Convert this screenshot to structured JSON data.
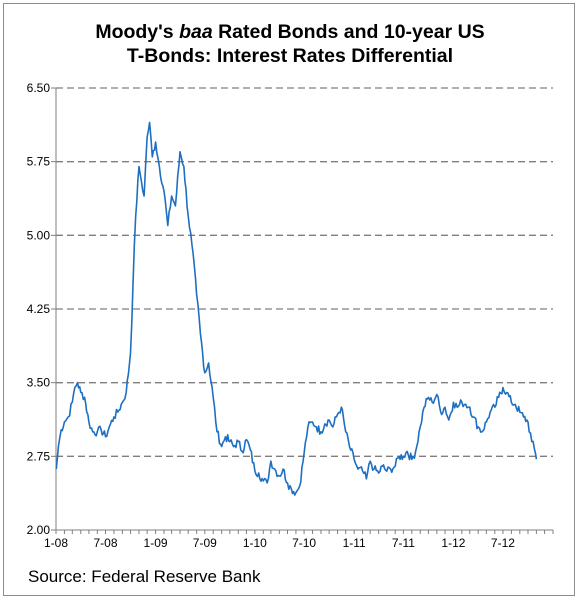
{
  "title": {
    "part1": "Moody's ",
    "part2_italic": "baa",
    "part3": " Rated Bonds and 10-year US",
    "line2": "T-Bonds: Interest Rates Differential"
  },
  "source": "Source: Federal Reserve Bank",
  "chart_data": {
    "type": "line",
    "title": "Moody's baa Rated Bonds and 10-year US T-Bonds: Interest Rates Differential",
    "xlabel": "",
    "ylabel": "",
    "ylim": [
      2.0,
      6.5
    ],
    "yticks": [
      "2.00",
      "2.75",
      "3.50",
      "4.25",
      "5.00",
      "5.75",
      "6.50"
    ],
    "xlim": [
      "2008-01",
      "2012-12"
    ],
    "xticks": [
      "1-08",
      "7-08",
      "1-09",
      "7-09",
      "1-10",
      "7-10",
      "1-11",
      "7-11",
      "1-12",
      "7-12"
    ],
    "grid": "horizontal dashed",
    "line_color": "#1f6fc0",
    "series": [
      {
        "x": [
          "2008-01-02",
          "2008-01-10",
          "2008-01-20",
          "2008-02-01",
          "2008-02-15",
          "2008-03-01",
          "2008-03-10",
          "2008-03-20",
          "2008-04-01",
          "2008-04-15",
          "2008-05-01",
          "2008-05-15",
          "2008-06-01",
          "2008-06-15",
          "2008-07-01",
          "2008-07-15",
          "2008-08-01",
          "2008-08-15",
          "2008-09-01",
          "2008-09-15",
          "2008-10-01",
          "2008-10-10",
          "2008-10-20",
          "2008-11-01",
          "2008-11-10",
          "2008-11-20",
          "2008-12-01",
          "2008-12-10",
          "2008-12-20",
          "2009-01-01",
          "2009-01-15",
          "2009-02-01",
          "2009-02-15",
          "2009-03-01",
          "2009-03-15",
          "2009-04-01",
          "2009-04-15",
          "2009-05-01",
          "2009-05-15",
          "2009-06-01",
          "2009-06-15",
          "2009-07-01",
          "2009-07-15",
          "2009-08-01",
          "2009-08-15",
          "2009-09-01",
          "2009-09-15",
          "2009-10-01",
          "2009-10-15",
          "2009-11-01",
          "2009-11-15",
          "2009-12-01",
          "2009-12-15",
          "2010-01-01",
          "2010-01-15",
          "2010-02-01",
          "2010-02-15",
          "2010-03-01",
          "2010-03-15",
          "2010-04-01",
          "2010-04-15",
          "2010-05-01",
          "2010-05-15",
          "2010-06-01",
          "2010-06-15",
          "2010-07-01",
          "2010-07-15",
          "2010-08-01",
          "2010-08-15",
          "2010-09-01",
          "2010-09-15",
          "2010-10-01",
          "2010-10-15",
          "2010-11-01",
          "2010-11-15",
          "2010-12-01",
          "2010-12-15",
          "2011-01-01",
          "2011-01-15",
          "2011-02-01",
          "2011-02-15",
          "2011-03-01",
          "2011-03-15",
          "2011-04-01",
          "2011-04-15",
          "2011-05-01",
          "2011-05-15",
          "2011-06-01",
          "2011-06-15",
          "2011-07-01",
          "2011-07-15",
          "2011-08-01",
          "2011-08-15",
          "2011-09-01",
          "2011-09-15",
          "2011-10-01",
          "2011-10-15",
          "2011-11-01",
          "2011-11-15",
          "2011-12-01",
          "2011-12-15",
          "2012-01-01",
          "2012-01-15",
          "2012-02-01",
          "2012-02-15",
          "2012-03-01",
          "2012-03-15",
          "2012-04-01",
          "2012-04-15",
          "2012-05-01",
          "2012-05-15",
          "2012-06-01",
          "2012-06-15",
          "2012-07-01",
          "2012-07-15",
          "2012-08-01",
          "2012-08-15",
          "2012-09-01",
          "2012-09-15",
          "2012-10-01",
          "2012-10-15",
          "2012-10-25",
          "2012-11-01"
        ],
        "values": [
          2.62,
          2.85,
          3.02,
          3.1,
          3.15,
          3.3,
          3.45,
          3.5,
          3.4,
          3.35,
          3.1,
          3.0,
          3.0,
          3.02,
          2.95,
          3.05,
          3.15,
          3.2,
          3.3,
          3.4,
          3.8,
          4.5,
          5.2,
          5.7,
          5.55,
          5.4,
          6.0,
          6.15,
          5.8,
          5.95,
          5.7,
          5.45,
          5.1,
          5.4,
          5.3,
          5.85,
          5.7,
          5.2,
          4.9,
          4.4,
          4.0,
          3.6,
          3.7,
          3.35,
          3.0,
          2.85,
          2.95,
          2.9,
          2.85,
          2.9,
          2.8,
          2.92,
          2.82,
          2.6,
          2.58,
          2.5,
          2.48,
          2.7,
          2.62,
          2.55,
          2.62,
          2.48,
          2.42,
          2.38,
          2.45,
          2.78,
          3.05,
          3.1,
          3.05,
          3.0,
          3.08,
          3.12,
          3.05,
          3.18,
          3.25,
          3.0,
          2.85,
          2.72,
          2.62,
          2.6,
          2.52,
          2.7,
          2.62,
          2.58,
          2.65,
          2.6,
          2.62,
          2.65,
          2.75,
          2.75,
          2.8,
          2.72,
          2.8,
          3.05,
          3.25,
          3.35,
          3.3,
          3.38,
          3.2,
          3.25,
          3.12,
          3.3,
          3.25,
          3.3,
          3.28,
          3.25,
          3.15,
          3.05,
          3.0,
          3.1,
          3.2,
          3.25,
          3.35,
          3.45,
          3.4,
          3.3,
          3.28,
          3.2,
          3.15,
          3.1,
          2.9,
          2.82,
          2.72
        ]
      }
    ]
  }
}
